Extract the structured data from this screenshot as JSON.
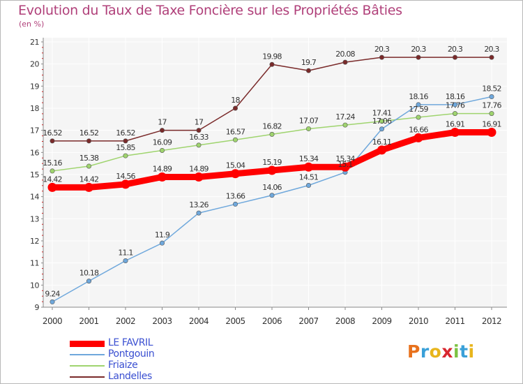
{
  "header": {
    "title": "Evolution du Taux de Taxe Foncière sur les Propriétés Bâties",
    "subtitle": "(en %)"
  },
  "logo": {
    "letters": [
      "P",
      "r",
      "o",
      "x",
      "i",
      "t",
      "i"
    ],
    "colors": [
      "#e8711c",
      "#3aa0d8",
      "#e8b51c",
      "#d8262e",
      "#7cc242",
      "#3aa0d8",
      "#e8b51c"
    ]
  },
  "chart_data": {
    "type": "line",
    "title": "Evolution du Taux de Taxe Foncière sur les Propriétés Bâties",
    "ylabel": "(en %)",
    "xlabel": "",
    "x": [
      "2000",
      "2001",
      "2002",
      "2003",
      "2004",
      "2005",
      "2006",
      "2007",
      "2008",
      "2009",
      "2010",
      "2011",
      "2012"
    ],
    "ylim": [
      9,
      21
    ],
    "yticks": [
      "9",
      "10",
      "11",
      "12",
      "13",
      "14",
      "15",
      "16",
      "17",
      "18",
      "19",
      "20",
      "21"
    ],
    "grid": true,
    "legend_position": "bottom-left",
    "series": [
      {
        "name": "LE FAVRIL",
        "color": "#ff0000",
        "values": [
          14.42,
          14.42,
          14.56,
          14.89,
          14.89,
          15.04,
          15.19,
          15.34,
          15.34,
          16.11,
          16.66,
          16.91,
          16.91
        ],
        "labels": [
          "14.42",
          "14.42",
          "14.56",
          "14.89",
          "14.89",
          "15.04",
          "15.19",
          "15.34",
          "15.34",
          "16.11",
          "16.66",
          "16.91",
          "16.91"
        ]
      },
      {
        "name": "Pontgouin",
        "color": "#6fa8dc",
        "values": [
          9.24,
          10.18,
          11.1,
          11.9,
          13.26,
          13.66,
          14.06,
          14.51,
          15.1,
          17.06,
          18.16,
          18.16,
          18.52
        ],
        "labels": [
          "9.24",
          "10.18",
          "11.1",
          "11.9",
          "13.26",
          "13.66",
          "14.06",
          "14.51",
          "15.1",
          "17.06",
          "18.16",
          "18.16",
          "18.52"
        ]
      },
      {
        "name": "Friaize",
        "color": "#9fd46e",
        "values": [
          15.16,
          15.38,
          15.85,
          16.09,
          16.33,
          16.57,
          16.82,
          17.07,
          17.24,
          17.41,
          17.59,
          17.76,
          17.76
        ],
        "labels": [
          "15.16",
          "15.38",
          "15.85",
          "16.09",
          "16.33",
          "16.57",
          "16.82",
          "17.07",
          "17.24",
          "17.41",
          "17.59",
          "17.76",
          "17.76"
        ]
      },
      {
        "name": "Landelles",
        "color": "#7a2a2a",
        "values": [
          16.52,
          16.52,
          16.52,
          17,
          17,
          18,
          19.98,
          19.7,
          20.08,
          20.3,
          20.3,
          20.3,
          20.3
        ],
        "labels": [
          "16.52",
          "16.52",
          "16.52",
          "17",
          "17",
          "18",
          "19.98",
          "19.7",
          "20.08",
          "20.3",
          "20.3",
          "20.3",
          "20.3"
        ]
      }
    ]
  }
}
